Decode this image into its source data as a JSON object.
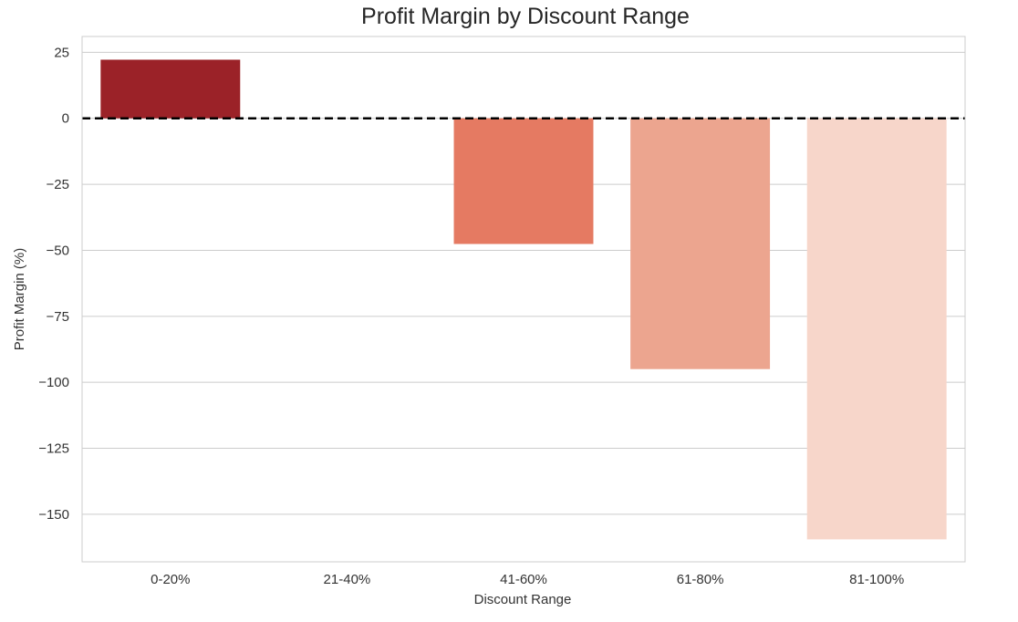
{
  "chart_data": {
    "type": "bar",
    "title": "Profit Margin by Discount Range",
    "xlabel": "Discount Range",
    "ylabel": "Profit Margin (%)",
    "categories": [
      "0-20%",
      "21-40%",
      "41-60%",
      "61-80%",
      "81-100%"
    ],
    "values": [
      22.2,
      0,
      -47.6,
      -95,
      -159.5
    ],
    "ylim": [
      -168,
      31
    ],
    "yticks": [
      25,
      0,
      -25,
      -50,
      -75,
      -100,
      -125,
      -150
    ],
    "ytick_labels": [
      "25",
      "0",
      "−25",
      "−50",
      "−75",
      "−100",
      "−125",
      "−150"
    ],
    "reference_line": {
      "y": 0,
      "style": "dashed",
      "color": "#000000"
    },
    "bar_colors": [
      "#9b2228",
      "#c53c33",
      "#e57a62",
      "#eca58f",
      "#f7d6ca"
    ],
    "grid": "horizontal",
    "frame_color": "#cccccc",
    "grid_color": "#cccccc"
  }
}
